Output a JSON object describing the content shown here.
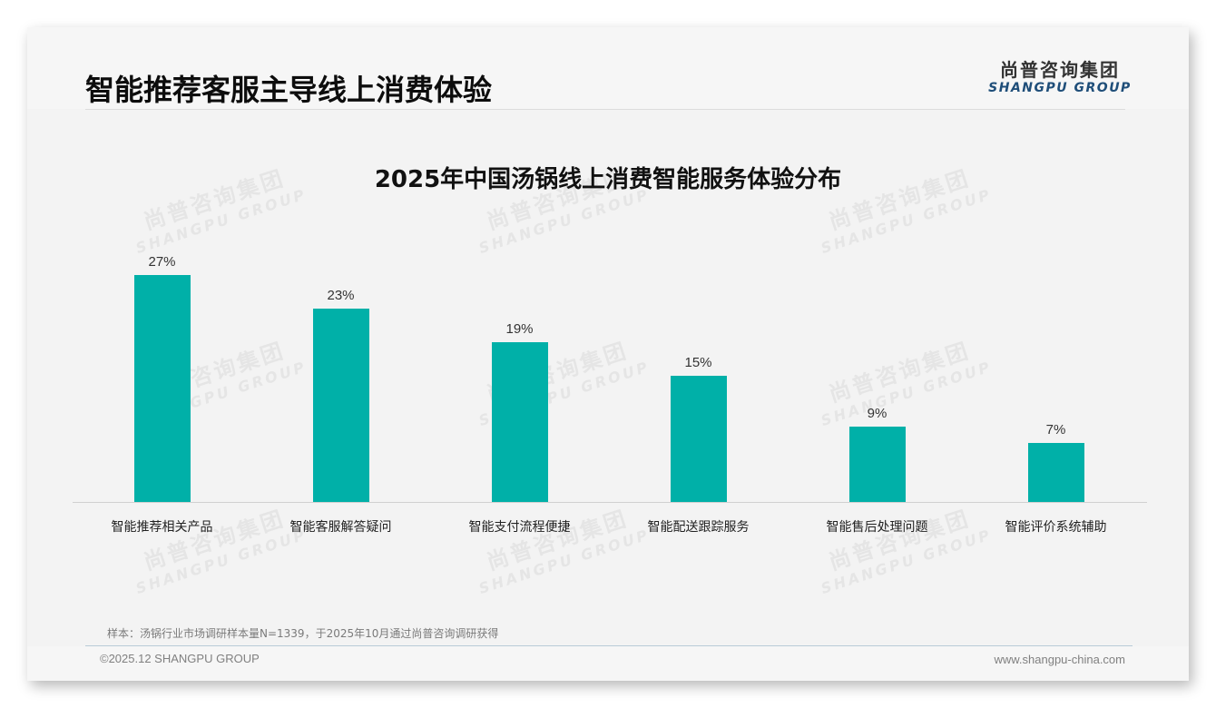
{
  "header": {
    "title": "智能推荐客服主导线上消费体验",
    "logo_cn": "尚普咨询集团",
    "logo_en": "SHANGPU GROUP"
  },
  "watermark": {
    "cn": "尚普咨询集团",
    "en": "SHANGPU GROUP"
  },
  "colors": {
    "bar": "#00b0a8",
    "logo_en": "#1f4e79"
  },
  "chart_data": {
    "type": "bar",
    "title": "2025年中国汤锅线上消费智能服务体验分布",
    "categories": [
      "智能推荐相关产品",
      "智能客服解答疑问",
      "智能支付流程便捷",
      "智能配送跟踪服务",
      "智能售后处理问题",
      "智能评价系统辅助"
    ],
    "values": [
      27,
      23,
      19,
      15,
      9,
      7
    ],
    "value_labels": [
      "27%",
      "23%",
      "19%",
      "15%",
      "9%",
      "7%"
    ],
    "unit": "%",
    "xlabel": "",
    "ylabel": "",
    "ylim": [
      0,
      27
    ],
    "grid": false,
    "legend": null
  },
  "footer": {
    "note": "样本：汤锅行业市场调研样本量N=1339，于2025年10月通过尚普咨询调研获得",
    "copyright": "©2025.12 SHANGPU GROUP",
    "website": "www.shangpu-china.com"
  }
}
